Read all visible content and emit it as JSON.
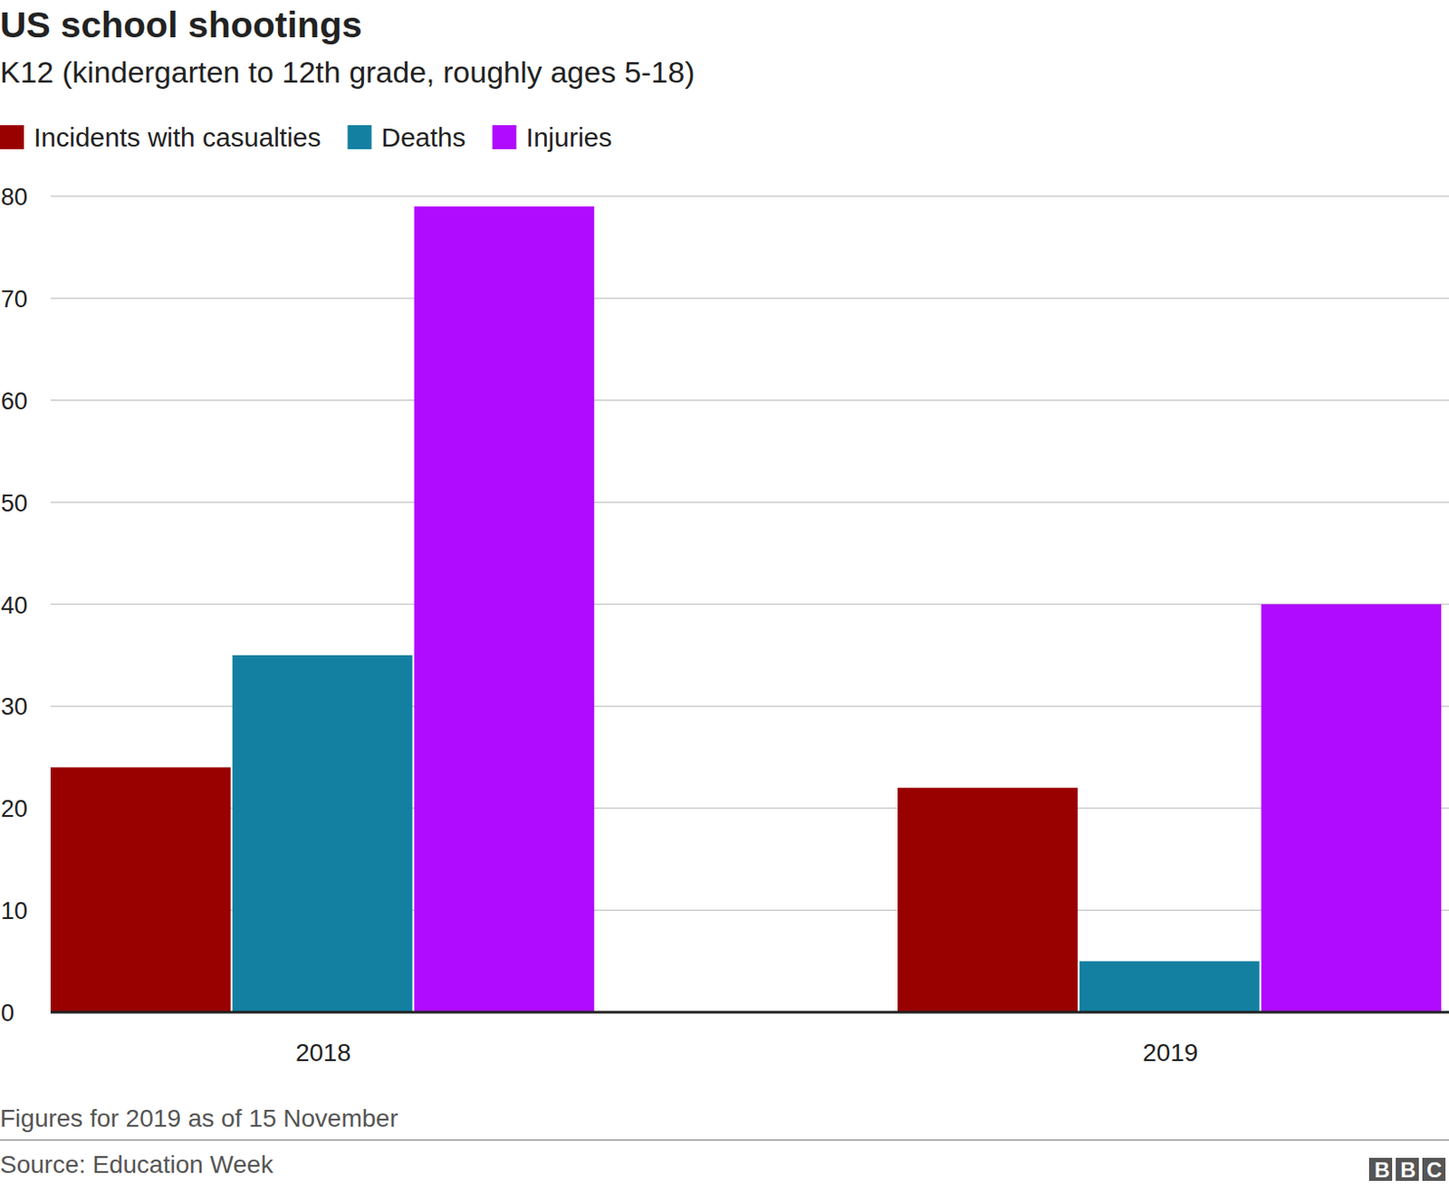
{
  "chart_data": {
    "type": "bar",
    "title": "US school shootings",
    "subtitle": "K12 (kindergarten to 12th grade, roughly ages 5-18)",
    "categories": [
      "2018",
      "2019"
    ],
    "series": [
      {
        "name": "Incidents with casualties",
        "color": "#990000",
        "values": [
          24,
          22
        ]
      },
      {
        "name": "Deaths",
        "color": "#1380a1",
        "values": [
          35,
          5
        ]
      },
      {
        "name": "Injuries",
        "color": "#b00bff",
        "values": [
          79,
          40
        ]
      }
    ],
    "ylim": [
      0,
      80
    ],
    "yticks": [
      0,
      10,
      20,
      30,
      40,
      50,
      60,
      70,
      80
    ],
    "grid": true,
    "legend": "top",
    "note": "Figures for 2019 as of 15 November",
    "source": "Source: Education Week",
    "logo": "BBC"
  }
}
